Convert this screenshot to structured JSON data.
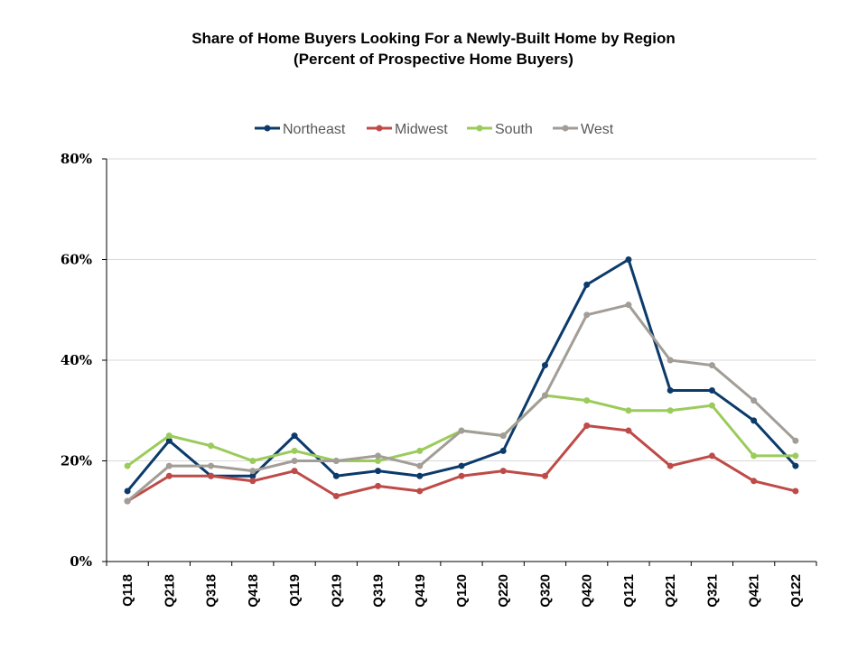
{
  "chart_data": {
    "type": "line",
    "title": "Share of Home Buyers Looking For a Newly-Built Home by Region",
    "subtitle": "(Percent of Prospective Home Buyers)",
    "categories": [
      "Q118",
      "Q218",
      "Q318",
      "Q418",
      "Q119",
      "Q219",
      "Q319",
      "Q419",
      "Q120",
      "Q220",
      "Q320",
      "Q420",
      "Q121",
      "Q221",
      "Q321",
      "Q421",
      "Q122"
    ],
    "ylim": [
      0,
      80
    ],
    "yticks": [
      0,
      20,
      40,
      60,
      80
    ],
    "ytick_labels": [
      "0%",
      "20%",
      "40%",
      "60%",
      "80%"
    ],
    "grid": true,
    "legend_position": "top",
    "series": [
      {
        "name": "Northeast",
        "color": "#0B3A6B",
        "values": [
          14,
          24,
          17,
          17,
          25,
          17,
          18,
          17,
          19,
          22,
          39,
          55,
          60,
          34,
          34,
          28,
          19
        ]
      },
      {
        "name": "Midwest",
        "color": "#BE4B48",
        "values": [
          12,
          17,
          17,
          16,
          18,
          13,
          15,
          14,
          17,
          18,
          17,
          27,
          26,
          19,
          21,
          16,
          14
        ]
      },
      {
        "name": "South",
        "color": "#9BCB5B",
        "values": [
          19,
          25,
          23,
          20,
          22,
          20,
          20,
          22,
          26,
          25,
          33,
          32,
          30,
          30,
          31,
          21,
          21
        ]
      },
      {
        "name": "West",
        "color": "#A29D96",
        "values": [
          12,
          19,
          19,
          18,
          20,
          20,
          21,
          19,
          26,
          25,
          33,
          49,
          51,
          40,
          39,
          32,
          24
        ]
      }
    ]
  }
}
